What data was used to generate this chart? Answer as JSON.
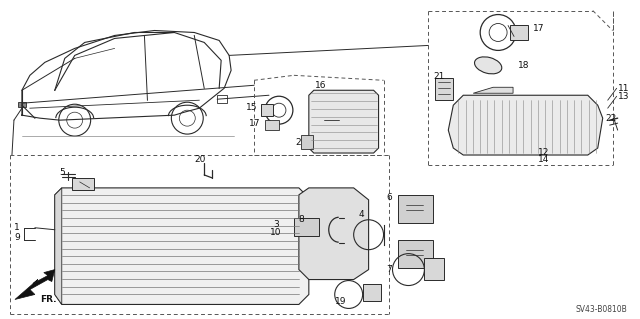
{
  "bg_color": "#ffffff",
  "diagram_code": "SV43-B0810B",
  "fig_width": 6.4,
  "fig_height": 3.19,
  "dpi": 100
}
